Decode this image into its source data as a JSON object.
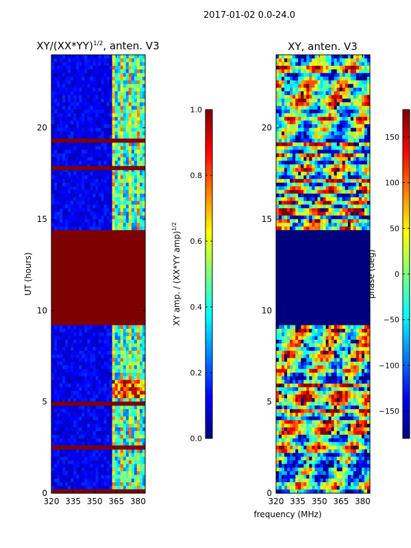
{
  "figure_title": "2017-01-02 0.0-24.0",
  "shared_xlabel": "frequency (MHz)",
  "colors": {
    "jet": [
      "#00007f",
      "#0000ff",
      "#007fff",
      "#00ffff",
      "#7fff7f",
      "#ffff00",
      "#ff7f00",
      "#ff0000",
      "#7f0000"
    ]
  },
  "chart_data": [
    {
      "type": "heatmap",
      "title_main": "XY/(XX*YY)",
      "title_sup": "1/2",
      "title_tail": ", anten. V3",
      "xlabel": "",
      "ylabel": "UT (hours)",
      "xlim": [
        320,
        385
      ],
      "ylim": [
        0,
        24
      ],
      "xticks": [
        "320",
        "335",
        "350",
        "365",
        "380"
      ],
      "xtick_values": [
        320,
        335,
        350,
        365,
        380
      ],
      "yticks": [
        "0",
        "5",
        "10",
        "15",
        "20"
      ],
      "ytick_values": [
        0,
        5,
        10,
        15,
        20
      ],
      "saturated_band_hours": [
        9.2,
        14.4
      ],
      "bright_channels_mhz": [
        362,
        385
      ],
      "flag_lines_hours": [
        0.1,
        2.5,
        4.9,
        19.3,
        17.8
      ],
      "colorbar": {
        "label_main": "XY amp. / (XX*YY amp)",
        "label_sup": "1/2",
        "vmin": 0.0,
        "vmax": 1.0,
        "ticks": [
          "0.0",
          "0.2",
          "0.4",
          "0.6",
          "0.8",
          "1.0"
        ],
        "tick_values": [
          0.0,
          0.2,
          0.4,
          0.6,
          0.8,
          1.0
        ]
      }
    },
    {
      "type": "heatmap",
      "title": "XY, anten. V3",
      "xlabel": "frequency (MHz)",
      "ylabel": "",
      "xlim": [
        320,
        385
      ],
      "ylim": [
        0,
        24
      ],
      "xticks": [
        "320",
        "335",
        "350",
        "365",
        "380"
      ],
      "xtick_values": [
        320,
        335,
        350,
        365,
        380
      ],
      "yticks": [
        "0",
        "5",
        "10",
        "15",
        "20"
      ],
      "ytick_values": [
        0,
        5,
        10,
        15,
        20
      ],
      "masked_band_hours": [
        9.2,
        14.4
      ],
      "colorbar": {
        "label": "phase (deg)",
        "vmin": -180,
        "vmax": 180,
        "ticks": [
          "−150",
          "−100",
          "−50",
          "0",
          "50",
          "100",
          "150"
        ],
        "tick_values": [
          -150,
          -100,
          -50,
          0,
          50,
          100,
          150
        ]
      }
    }
  ]
}
